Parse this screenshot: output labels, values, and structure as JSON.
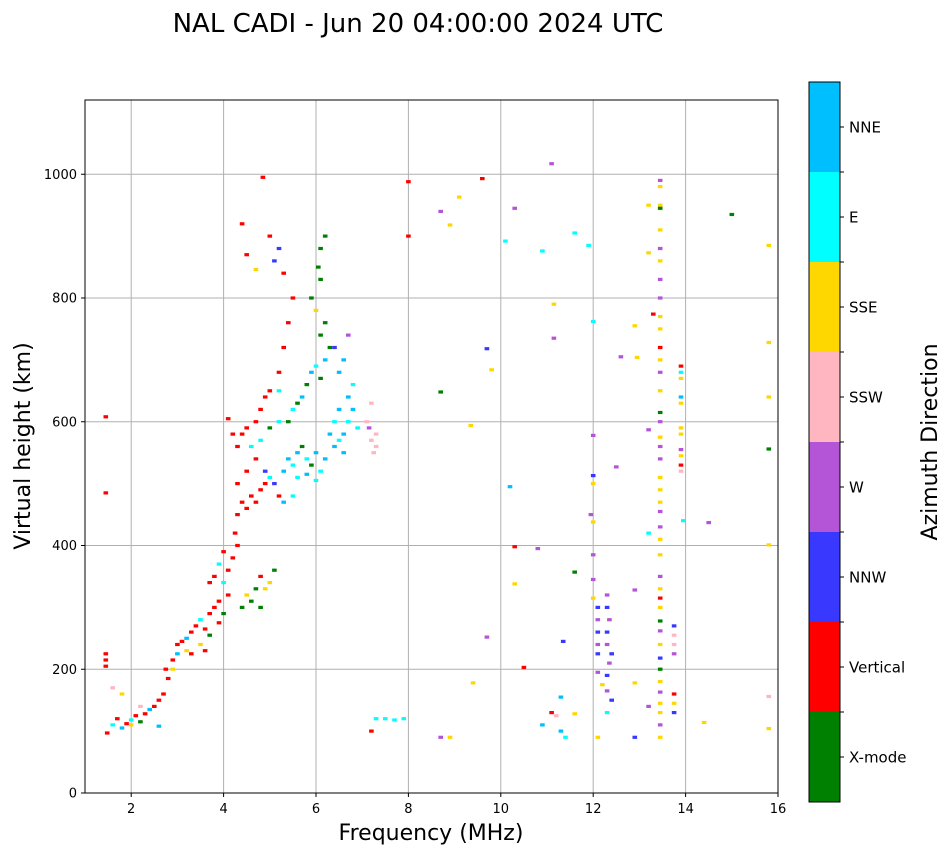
{
  "chart_data": {
    "type": "scatter",
    "title": "NAL CADI - Jun 20 04:00:00 2024 UTC",
    "xlabel": "Frequency (MHz)",
    "ylabel": "Virtual height (km)",
    "xlim": [
      1,
      16
    ],
    "ylim": [
      0,
      1120
    ],
    "xticks": [
      2,
      4,
      6,
      8,
      10,
      12,
      14,
      16
    ],
    "yticks": [
      0,
      200,
      400,
      600,
      800,
      1000
    ],
    "grid": true,
    "colorbar": {
      "title": "Azimuth Direction",
      "categories": [
        {
          "name": "X-mode",
          "color": "#008000"
        },
        {
          "name": "Vertical",
          "color": "#ff0000"
        },
        {
          "name": "NNW",
          "color": "#3838ff"
        },
        {
          "name": "W",
          "color": "#b455d8"
        },
        {
          "name": "SSW",
          "color": "#ffb6c1"
        },
        {
          "name": "SSE",
          "color": "#ffd700"
        },
        {
          "name": "E",
          "color": "#00ffff"
        },
        {
          "name": "NNE",
          "color": "#00bfff"
        }
      ]
    },
    "points": [
      [
        1.48,
        97,
        1
      ],
      [
        1.6,
        110,
        6
      ],
      [
        1.7,
        120,
        1
      ],
      [
        1.8,
        105,
        7
      ],
      [
        1.9,
        112,
        1
      ],
      [
        2.0,
        118,
        6
      ],
      [
        2.1,
        125,
        1
      ],
      [
        2.2,
        115,
        0
      ],
      [
        2.3,
        128,
        1
      ],
      [
        2.4,
        135,
        7
      ],
      [
        2.5,
        140,
        1
      ],
      [
        2.6,
        150,
        1
      ],
      [
        2.7,
        160,
        1
      ],
      [
        2.8,
        185,
        1
      ],
      [
        2.9,
        200,
        5
      ],
      [
        1.45,
        225,
        1
      ],
      [
        1.45,
        215,
        1
      ],
      [
        1.45,
        205,
        1
      ],
      [
        1.45,
        485,
        1
      ],
      [
        1.45,
        608,
        1
      ],
      [
        1.6,
        170,
        4
      ],
      [
        1.8,
        160,
        5
      ],
      [
        2.0,
        110,
        5
      ],
      [
        2.2,
        140,
        4
      ],
      [
        2.6,
        108,
        7
      ],
      [
        2.75,
        200,
        1
      ],
      [
        2.9,
        215,
        1
      ],
      [
        3.0,
        240,
        1
      ],
      [
        3.0,
        225,
        7
      ],
      [
        3.1,
        245,
        1
      ],
      [
        3.2,
        250,
        7
      ],
      [
        3.3,
        260,
        1
      ],
      [
        3.4,
        270,
        1
      ],
      [
        3.5,
        280,
        6
      ],
      [
        3.6,
        265,
        1
      ],
      [
        3.7,
        290,
        1
      ],
      [
        3.8,
        300,
        1
      ],
      [
        3.9,
        310,
        1
      ],
      [
        4.0,
        290,
        0
      ],
      [
        4.1,
        320,
        1
      ],
      [
        3.2,
        230,
        5
      ],
      [
        3.3,
        225,
        1
      ],
      [
        3.5,
        240,
        5
      ],
      [
        3.6,
        230,
        1
      ],
      [
        3.7,
        255,
        0
      ],
      [
        3.9,
        275,
        1
      ],
      [
        4.0,
        340,
        6
      ],
      [
        4.1,
        360,
        1
      ],
      [
        4.2,
        380,
        1
      ],
      [
        4.3,
        400,
        1
      ],
      [
        4.25,
        420,
        1
      ],
      [
        3.8,
        350,
        1
      ],
      [
        3.9,
        370,
        6
      ],
      [
        4.0,
        390,
        1
      ],
      [
        3.7,
        340,
        1
      ],
      [
        4.4,
        300,
        0
      ],
      [
        4.5,
        320,
        5
      ],
      [
        4.6,
        310,
        0
      ],
      [
        4.7,
        330,
        0
      ],
      [
        4.8,
        300,
        0
      ],
      [
        4.9,
        330,
        5
      ],
      [
        5.0,
        340,
        5
      ],
      [
        5.1,
        360,
        0
      ],
      [
        4.8,
        350,
        1
      ],
      [
        4.3,
        450,
        1
      ],
      [
        4.4,
        470,
        1
      ],
      [
        4.5,
        460,
        1
      ],
      [
        4.6,
        480,
        1
      ],
      [
        4.7,
        470,
        1
      ],
      [
        4.8,
        490,
        1
      ],
      [
        4.9,
        500,
        1
      ],
      [
        5.0,
        510,
        6
      ],
      [
        5.2,
        480,
        1
      ],
      [
        4.3,
        500,
        1
      ],
      [
        4.5,
        520,
        1
      ],
      [
        4.7,
        540,
        1
      ],
      [
        4.9,
        520,
        2
      ],
      [
        5.1,
        500,
        2
      ],
      [
        5.3,
        470,
        7
      ],
      [
        5.5,
        480,
        6
      ],
      [
        4.3,
        560,
        1
      ],
      [
        4.4,
        580,
        1
      ],
      [
        4.5,
        590,
        1
      ],
      [
        4.7,
        600,
        1
      ],
      [
        4.8,
        620,
        1
      ],
      [
        4.9,
        640,
        1
      ],
      [
        5.0,
        650,
        1
      ],
      [
        4.6,
        560,
        6
      ],
      [
        4.8,
        570,
        6
      ],
      [
        5.0,
        590,
        0
      ],
      [
        5.2,
        600,
        6
      ],
      [
        4.1,
        605,
        1
      ],
      [
        4.2,
        580,
        1
      ],
      [
        5.3,
        520,
        7
      ],
      [
        5.4,
        540,
        7
      ],
      [
        5.5,
        530,
        6
      ],
      [
        5.6,
        550,
        7
      ],
      [
        5.7,
        560,
        0
      ],
      [
        5.8,
        540,
        6
      ],
      [
        5.9,
        530,
        0
      ],
      [
        6.0,
        550,
        7
      ],
      [
        6.1,
        520,
        6
      ],
      [
        6.2,
        540,
        7
      ],
      [
        5.6,
        510,
        6
      ],
      [
        5.8,
        515,
        7
      ],
      [
        6.0,
        505,
        6
      ],
      [
        5.4,
        600,
        0
      ],
      [
        5.5,
        620,
        6
      ],
      [
        5.6,
        630,
        0
      ],
      [
        5.7,
        640,
        7
      ],
      [
        5.8,
        660,
        0
      ],
      [
        5.9,
        680,
        7
      ],
      [
        6.0,
        690,
        6
      ],
      [
        6.1,
        670,
        0
      ],
      [
        6.2,
        700,
        7
      ],
      [
        6.3,
        720,
        0
      ],
      [
        6.1,
        740,
        0
      ],
      [
        6.2,
        760,
        0
      ],
      [
        6.0,
        780,
        5
      ],
      [
        5.9,
        800,
        0
      ],
      [
        6.1,
        830,
        0
      ],
      [
        6.05,
        850,
        0
      ],
      [
        6.1,
        880,
        0
      ],
      [
        6.2,
        900,
        0
      ],
      [
        6.3,
        580,
        7
      ],
      [
        6.4,
        600,
        6
      ],
      [
        6.5,
        620,
        7
      ],
      [
        6.6,
        580,
        7
      ],
      [
        6.7,
        600,
        6
      ],
      [
        6.8,
        620,
        7
      ],
      [
        6.9,
        590,
        6
      ],
      [
        6.4,
        560,
        7
      ],
      [
        6.5,
        570,
        6
      ],
      [
        6.6,
        550,
        7
      ],
      [
        6.7,
        640,
        7
      ],
      [
        6.8,
        660,
        6
      ],
      [
        6.5,
        680,
        7
      ],
      [
        6.6,
        700,
        7
      ],
      [
        6.4,
        720,
        2
      ],
      [
        6.7,
        740,
        3
      ],
      [
        5.2,
        680,
        1
      ],
      [
        5.3,
        720,
        1
      ],
      [
        5.4,
        760,
        1
      ],
      [
        5.5,
        800,
        1
      ],
      [
        5.3,
        840,
        1
      ],
      [
        5.2,
        880,
        2
      ],
      [
        5.0,
        900,
        1
      ],
      [
        4.85,
        995,
        1
      ],
      [
        4.4,
        920,
        1
      ],
      [
        4.5,
        870,
        1
      ],
      [
        4.7,
        846,
        5
      ],
      [
        5.1,
        860,
        2
      ],
      [
        5.2,
        650,
        6
      ],
      [
        7.2,
        570,
        4
      ],
      [
        7.25,
        550,
        4
      ],
      [
        7.3,
        560,
        4
      ],
      [
        7.1,
        600,
        4
      ],
      [
        7.2,
        630,
        4
      ],
      [
        7.15,
        590,
        3
      ],
      [
        7.3,
        580,
        4
      ],
      [
        7.3,
        120,
        6
      ],
      [
        7.5,
        120,
        6
      ],
      [
        7.7,
        118,
        6
      ],
      [
        7.9,
        120,
        6
      ],
      [
        7.2,
        100,
        1
      ],
      [
        8.0,
        900,
        1
      ],
      [
        8.0,
        988,
        1
      ],
      [
        8.7,
        940,
        3
      ],
      [
        8.9,
        918,
        5
      ],
      [
        9.1,
        963,
        5
      ],
      [
        9.6,
        993,
        1
      ],
      [
        8.7,
        648,
        0
      ],
      [
        9.35,
        594,
        5
      ],
      [
        9.7,
        718,
        2
      ],
      [
        9.8,
        684,
        5
      ],
      [
        9.7,
        252,
        3
      ],
      [
        9.4,
        178,
        5
      ],
      [
        8.7,
        90,
        3
      ],
      [
        8.9,
        90,
        5
      ],
      [
        10.1,
        892,
        6
      ],
      [
        10.3,
        945,
        3
      ],
      [
        10.2,
        495,
        7
      ],
      [
        10.3,
        398,
        1
      ],
      [
        10.3,
        338,
        5
      ],
      [
        10.5,
        203,
        1
      ],
      [
        10.8,
        395,
        3
      ],
      [
        10.9,
        876,
        6
      ],
      [
        10.9,
        110,
        7
      ],
      [
        11.1,
        1017,
        3
      ],
      [
        11.1,
        130,
        1
      ],
      [
        11.2,
        125,
        4
      ],
      [
        11.3,
        100,
        7
      ],
      [
        11.4,
        90,
        6
      ],
      [
        11.35,
        245,
        2
      ],
      [
        11.3,
        155,
        7
      ],
      [
        11.6,
        128,
        5
      ],
      [
        11.6,
        357,
        0
      ],
      [
        11.6,
        905,
        6
      ],
      [
        11.15,
        790,
        5
      ],
      [
        11.15,
        735,
        3
      ],
      [
        11.9,
        885,
        6
      ],
      [
        12.0,
        762,
        6
      ],
      [
        12.0,
        578,
        3
      ],
      [
        12.0,
        513,
        2
      ],
      [
        12.0,
        500,
        5
      ],
      [
        11.95,
        450,
        3
      ],
      [
        12.0,
        438,
        5
      ],
      [
        12.0,
        385,
        3
      ],
      [
        12.0,
        345,
        3
      ],
      [
        12.0,
        315,
        5
      ],
      [
        12.1,
        300,
        2
      ],
      [
        12.1,
        280,
        3
      ],
      [
        12.1,
        260,
        2
      ],
      [
        12.1,
        240,
        3
      ],
      [
        12.1,
        225,
        2
      ],
      [
        12.1,
        195,
        3
      ],
      [
        12.2,
        175,
        5
      ],
      [
        12.3,
        130,
        6
      ],
      [
        12.1,
        90,
        5
      ],
      [
        12.3,
        320,
        3
      ],
      [
        12.3,
        300,
        2
      ],
      [
        12.35,
        280,
        3
      ],
      [
        12.3,
        260,
        2
      ],
      [
        12.3,
        240,
        3
      ],
      [
        12.4,
        225,
        2
      ],
      [
        12.35,
        210,
        3
      ],
      [
        12.3,
        190,
        2
      ],
      [
        12.3,
        165,
        3
      ],
      [
        12.4,
        150,
        2
      ],
      [
        12.5,
        527,
        3
      ],
      [
        12.6,
        705,
        3
      ],
      [
        12.95,
        704,
        5
      ],
      [
        12.9,
        755,
        5
      ],
      [
        12.9,
        328,
        3
      ],
      [
        12.9,
        178,
        5
      ],
      [
        12.9,
        90,
        2
      ],
      [
        13.2,
        950,
        5
      ],
      [
        13.2,
        873,
        5
      ],
      [
        13.3,
        774,
        1
      ],
      [
        13.2,
        587,
        3
      ],
      [
        13.2,
        420,
        6
      ],
      [
        13.2,
        140,
        3
      ],
      [
        13.45,
        990,
        3
      ],
      [
        13.45,
        980,
        5
      ],
      [
        13.45,
        950,
        5
      ],
      [
        13.45,
        945,
        0
      ],
      [
        13.45,
        910,
        5
      ],
      [
        13.45,
        880,
        3
      ],
      [
        13.45,
        860,
        5
      ],
      [
        13.45,
        830,
        3
      ],
      [
        13.45,
        800,
        3
      ],
      [
        13.45,
        770,
        5
      ],
      [
        13.45,
        750,
        5
      ],
      [
        13.45,
        720,
        1
      ],
      [
        13.45,
        700,
        5
      ],
      [
        13.45,
        680,
        3
      ],
      [
        13.45,
        650,
        5
      ],
      [
        13.45,
        615,
        0
      ],
      [
        13.45,
        600,
        3
      ],
      [
        13.45,
        575,
        5
      ],
      [
        13.45,
        560,
        3
      ],
      [
        13.45,
        540,
        3
      ],
      [
        13.45,
        510,
        5
      ],
      [
        13.45,
        490,
        5
      ],
      [
        13.45,
        470,
        5
      ],
      [
        13.45,
        455,
        3
      ],
      [
        13.45,
        430,
        3
      ],
      [
        13.45,
        410,
        5
      ],
      [
        13.45,
        385,
        5
      ],
      [
        13.45,
        350,
        3
      ],
      [
        13.45,
        330,
        5
      ],
      [
        13.45,
        315,
        1
      ],
      [
        13.45,
        300,
        5
      ],
      [
        13.45,
        278,
        0
      ],
      [
        13.45,
        262,
        3
      ],
      [
        13.45,
        240,
        5
      ],
      [
        13.45,
        218,
        2
      ],
      [
        13.45,
        200,
        0
      ],
      [
        13.45,
        180,
        5
      ],
      [
        13.45,
        163,
        3
      ],
      [
        13.45,
        145,
        5
      ],
      [
        13.45,
        130,
        5
      ],
      [
        13.45,
        110,
        3
      ],
      [
        13.45,
        90,
        5
      ],
      [
        13.75,
        270,
        2
      ],
      [
        13.75,
        255,
        4
      ],
      [
        13.75,
        240,
        4
      ],
      [
        13.75,
        225,
        3
      ],
      [
        13.75,
        160,
        1
      ],
      [
        13.75,
        145,
        5
      ],
      [
        13.75,
        130,
        2
      ],
      [
        13.9,
        690,
        1
      ],
      [
        13.9,
        680,
        6
      ],
      [
        13.9,
        670,
        5
      ],
      [
        13.9,
        640,
        7
      ],
      [
        13.9,
        630,
        5
      ],
      [
        13.9,
        590,
        5
      ],
      [
        13.9,
        580,
        5
      ],
      [
        13.9,
        555,
        3
      ],
      [
        13.9,
        545,
        5
      ],
      [
        13.9,
        530,
        1
      ],
      [
        13.9,
        520,
        4
      ],
      [
        13.95,
        440,
        6
      ],
      [
        14.4,
        114,
        5
      ],
      [
        14.5,
        437,
        3
      ],
      [
        15.0,
        935,
        0
      ],
      [
        15.8,
        885,
        5
      ],
      [
        15.8,
        728,
        5
      ],
      [
        15.8,
        640,
        5
      ],
      [
        15.8,
        556,
        0
      ],
      [
        15.8,
        401,
        5
      ],
      [
        15.8,
        156,
        4
      ],
      [
        15.8,
        104,
        5
      ]
    ]
  }
}
